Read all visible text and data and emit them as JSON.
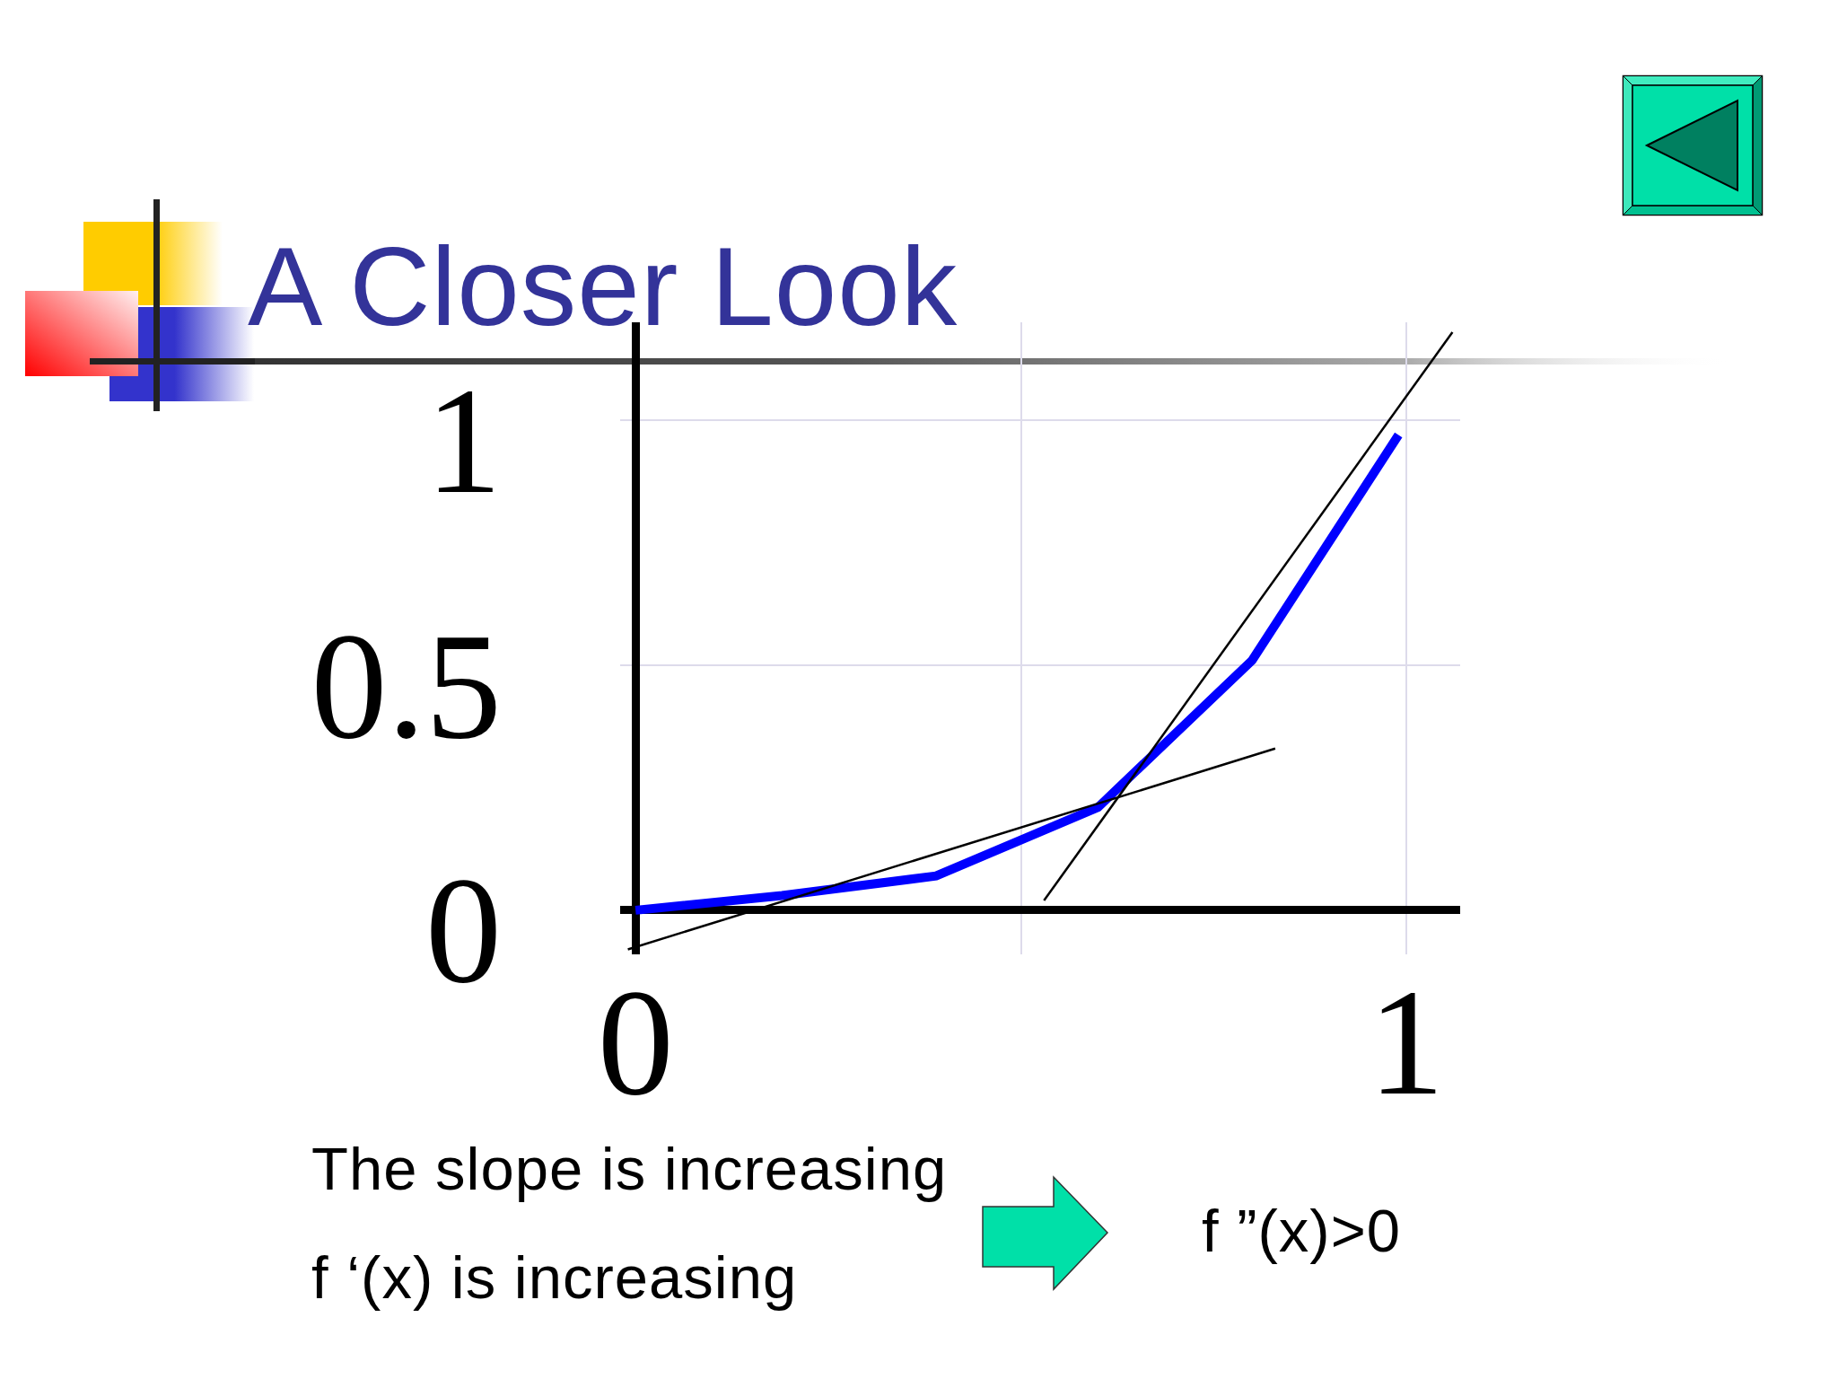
{
  "chart_data": {
    "type": "line",
    "title": "A Closer Look",
    "annotations": [
      "The slope is increasing",
      "f ‘(x) is increasing",
      "f ”(x)>0"
    ],
    "xlim": [
      -0.02,
      1.07
    ],
    "xticks": [
      0,
      {
        "value": 0.5,
        "label": null
      },
      1
    ],
    "ylim": [
      -0.09,
      1.2
    ],
    "yticks": [
      0,
      0.5,
      1
    ],
    "grid": true,
    "series": [
      {
        "color": "#0000ff",
        "x": [
          0,
          0.19,
          0.39,
          0.6,
          0.8,
          0.99
        ],
        "values": [
          0,
          0.03,
          0.07,
          0.21,
          0.51,
          0.97
        ]
      },
      {
        "color": "#000000",
        "x": [
          -0.01,
          0.83
        ],
        "values": [
          -0.08,
          0.33
        ]
      },
      {
        "color": "#000000",
        "x": [
          0.53,
          1.06
        ],
        "values": [
          0.02,
          1.18
        ]
      }
    ]
  }
}
